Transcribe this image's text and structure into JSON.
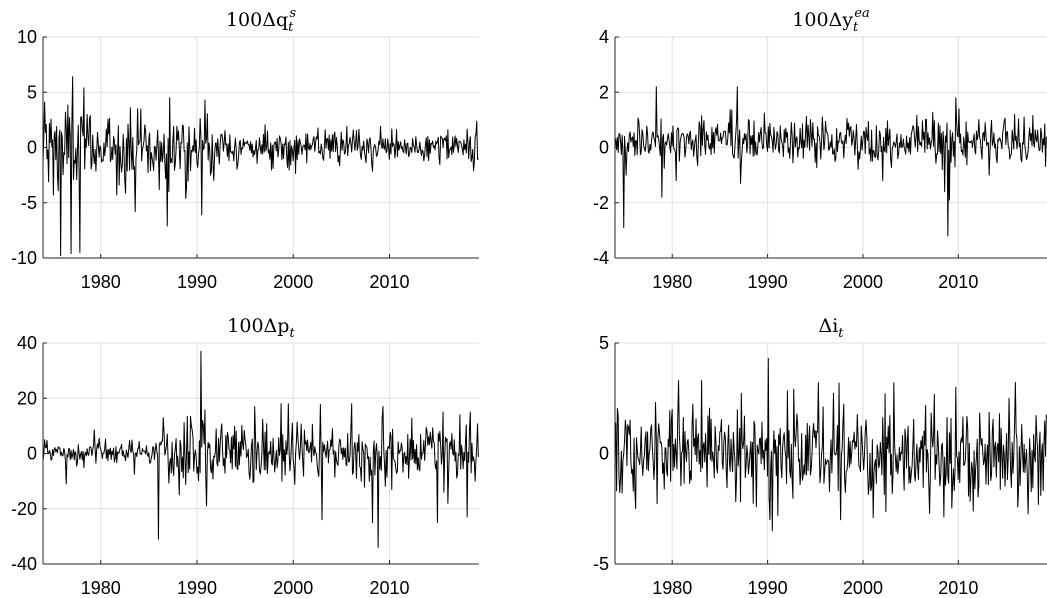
{
  "chart_data": [
    {
      "type": "line",
      "title": {
        "base": "100Δq",
        "sub": "t",
        "sup": "s"
      },
      "xlim": [
        1974,
        2019.3
      ],
      "ylim": [
        -10,
        10
      ],
      "xticks": [
        1980,
        1990,
        2000,
        2010
      ],
      "yticks": [
        -10,
        -5,
        0,
        5,
        10
      ],
      "xtick_labels": [
        "1980",
        "1990",
        "2000",
        "2010"
      ],
      "ytick_labels": [
        "-10",
        "-5",
        "0",
        "5",
        "10"
      ],
      "grid": true,
      "series": [
        {
          "step": 0.0833,
          "noise_sd": 1.0,
          "segments": [
            {
              "until": 1979,
              "sd": 2.2
            },
            {
              "until": 1992,
              "sd": 1.5
            },
            {
              "until": 2020,
              "sd": 0.75
            }
          ],
          "spikes": [
            [
              1975.1,
              -4.3
            ],
            [
              1975.8,
              -9.8
            ],
            [
              1976.3,
              3.2
            ],
            [
              1976.9,
              -9.6
            ],
            [
              1977.1,
              6.4
            ],
            [
              1977.5,
              -2.9
            ],
            [
              1977.8,
              -9.5
            ],
            [
              1978.6,
              3.0
            ],
            [
              1981.7,
              -4.3
            ],
            [
              1983.1,
              3.6
            ],
            [
              1983.6,
              -5.8
            ],
            [
              1984.2,
              3.5
            ],
            [
              1985.2,
              -2.1
            ],
            [
              1986.1,
              -3.8
            ],
            [
              1986.9,
              -7.1
            ],
            [
              1987.2,
              4.5
            ],
            [
              1988.8,
              -4.6
            ],
            [
              1990.5,
              -6.1
            ],
            [
              1990.8,
              4.3
            ],
            [
              1991.4,
              -2.5
            ],
            [
              2018.7,
              -2.1
            ],
            [
              2019.1,
              2.4
            ]
          ],
          "color": "#000000"
        }
      ]
    },
    {
      "type": "line",
      "title": {
        "base": "100Δy",
        "sub": "t",
        "sup": "ea"
      },
      "xlim": [
        1974,
        2019.3
      ],
      "ylim": [
        -4,
        4
      ],
      "xticks": [
        1980,
        1990,
        2000,
        2010
      ],
      "yticks": [
        -4,
        -2,
        0,
        2,
        4
      ],
      "xtick_labels": [
        "1980",
        "1990",
        "2000",
        "2010"
      ],
      "ytick_labels": [
        "-4",
        "-2",
        "0",
        "2",
        "4"
      ],
      "grid": true,
      "series": [
        {
          "step": 0.0833,
          "mean": 0.25,
          "noise_sd": 0.42,
          "spikes": [
            [
              1974.4,
              0.5
            ],
            [
              1974.9,
              -2.9
            ],
            [
              1975.2,
              -1.0
            ],
            [
              1978.3,
              2.2
            ],
            [
              1978.9,
              -1.8
            ],
            [
              1980.4,
              -1.2
            ],
            [
              1986.8,
              2.2
            ],
            [
              1987.2,
              -1.3
            ],
            [
              2002.1,
              -1.2
            ],
            [
              2008.3,
              -0.8
            ],
            [
              2008.6,
              -1.6
            ],
            [
              2008.9,
              -3.2
            ],
            [
              2009.1,
              -1.9
            ],
            [
              2009.7,
              1.8
            ],
            [
              2010.1,
              1.4
            ],
            [
              2013.2,
              -1.0
            ]
          ],
          "color": "#000000"
        }
      ]
    },
    {
      "type": "line",
      "title": {
        "base": "100Δp",
        "sub": "t",
        "sup": ""
      },
      "xlim": [
        1974,
        2019.3
      ],
      "ylim": [
        -40,
        40
      ],
      "xticks": [
        1980,
        1990,
        2000,
        2010
      ],
      "yticks": [
        -40,
        -20,
        0,
        20,
        40
      ],
      "xtick_labels": [
        "1980",
        "1990",
        "2000",
        "2010"
      ],
      "ytick_labels": [
        "-40",
        "-20",
        "0",
        "20",
        "40"
      ],
      "grid": true,
      "series": [
        {
          "step": 0.0833,
          "noise_sd": 1.0,
          "segments": [
            {
              "until": 1986,
              "sd": 1.8
            },
            {
              "until": 2020,
              "sd": 6.0
            }
          ],
          "spikes": [
            [
              1974.2,
              5.0
            ],
            [
              1976.4,
              -11.0
            ],
            [
              1979.3,
              8.5
            ],
            [
              1979.8,
              5.5
            ],
            [
              1983.5,
              -7.5
            ],
            [
              1986.0,
              -31.0
            ],
            [
              1986.5,
              13.0
            ],
            [
              1988.2,
              -15.0
            ],
            [
              1990.4,
              37.0
            ],
            [
              1991.0,
              -19.0
            ],
            [
              1999.5,
              18.0
            ],
            [
              2003.0,
              -24.0
            ],
            [
              2006.1,
              18.0
            ],
            [
              2008.2,
              -25.0
            ],
            [
              2008.8,
              -34.0
            ],
            [
              2009.3,
              17.0
            ],
            [
              2015.0,
              -25.0
            ],
            [
              2015.6,
              15.0
            ],
            [
              2016.1,
              -18.0
            ],
            [
              2017.3,
              14.0
            ],
            [
              2018.1,
              -23.0
            ],
            [
              2018.4,
              15.0
            ],
            [
              2018.9,
              -10.0
            ]
          ],
          "color": "#000000"
        }
      ]
    },
    {
      "type": "line",
      "title": {
        "base": "Δi",
        "sub": "t",
        "sup": ""
      },
      "xlim": [
        1974,
        2019.3
      ],
      "ylim": [
        -5,
        5
      ],
      "xticks": [
        1980,
        1990,
        2000,
        2010
      ],
      "yticks": [
        -5,
        0,
        5
      ],
      "xtick_labels": [
        "1980",
        "1990",
        "2000",
        "2010"
      ],
      "ytick_labels": [
        "-5",
        "0",
        "5"
      ],
      "grid": true,
      "series": [
        {
          "step": 0.0833,
          "noise_sd": 1.1,
          "clip": [
            -3.0,
            3.4
          ],
          "spikes": [
            [
              1974.3,
              1.7
            ],
            [
              1975.9,
              -1.7
            ],
            [
              1980.7,
              3.3
            ],
            [
              1983.1,
              3.3
            ],
            [
              1990.1,
              4.3
            ],
            [
              1990.5,
              -3.5
            ],
            [
              1995.3,
              3.2
            ],
            [
              2001.1,
              -2.9
            ],
            [
              2003.2,
              3.2
            ],
            [
              2009.7,
              3.0
            ],
            [
              2011.6,
              -2.6
            ],
            [
              2015.3,
              2.5
            ],
            [
              2018.4,
              -2.3
            ]
          ],
          "color": "#000000"
        }
      ]
    }
  ]
}
